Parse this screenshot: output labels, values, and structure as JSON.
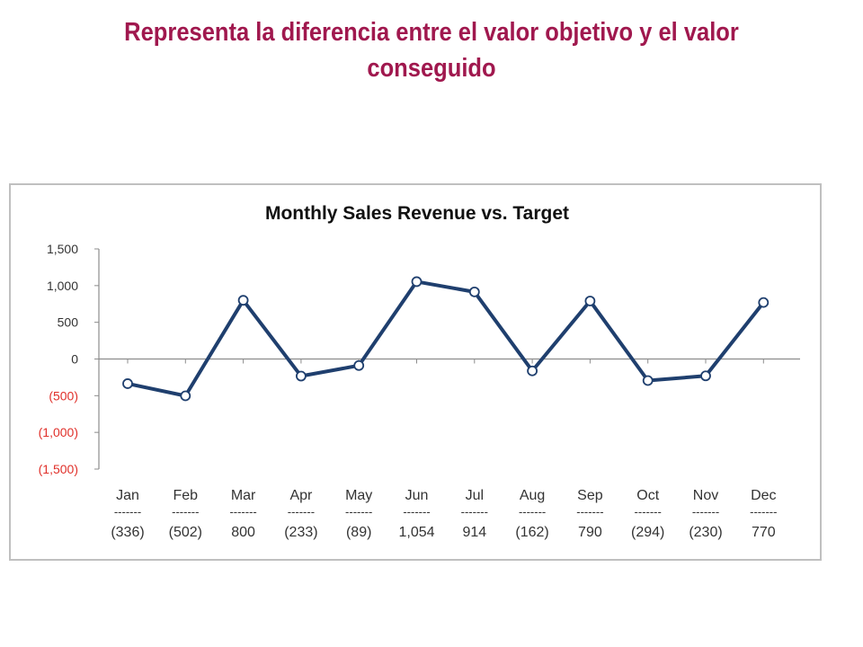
{
  "slide": {
    "title": "Representa la diferencia entre el valor objetivo y el valor conseguido"
  },
  "colors": {
    "title": "#a0184e",
    "line": "#1f3f6e",
    "negative_tick": "#e0302a",
    "axis": "#8c8c8c"
  },
  "chart_data": {
    "type": "line",
    "title": "Monthly Sales Revenue vs. Target",
    "categories": [
      "Jan",
      "Feb",
      "Mar",
      "Apr",
      "May",
      "Jun",
      "Jul",
      "Aug",
      "Sep",
      "Oct",
      "Nov",
      "Dec"
    ],
    "values": [
      -336,
      -502,
      800,
      -233,
      -89,
      1054,
      914,
      -162,
      790,
      -294,
      -230,
      770
    ],
    "value_labels": [
      "(336)",
      "(502)",
      "800",
      "(233)",
      "(89)",
      "1,054",
      "914",
      "(162)",
      "790",
      "(294)",
      "(230)",
      "770"
    ],
    "separator": "-------",
    "ylim": [
      -1500,
      1500
    ],
    "yticks": [
      1500,
      1000,
      500,
      0,
      -500,
      -1000,
      -1500
    ],
    "ytick_labels": [
      "1,500",
      "1,000",
      "500",
      "0",
      "(500)",
      "(1,000)",
      "(1,500)"
    ],
    "grid": false,
    "legend": "none",
    "markers": "hollow-circle"
  }
}
